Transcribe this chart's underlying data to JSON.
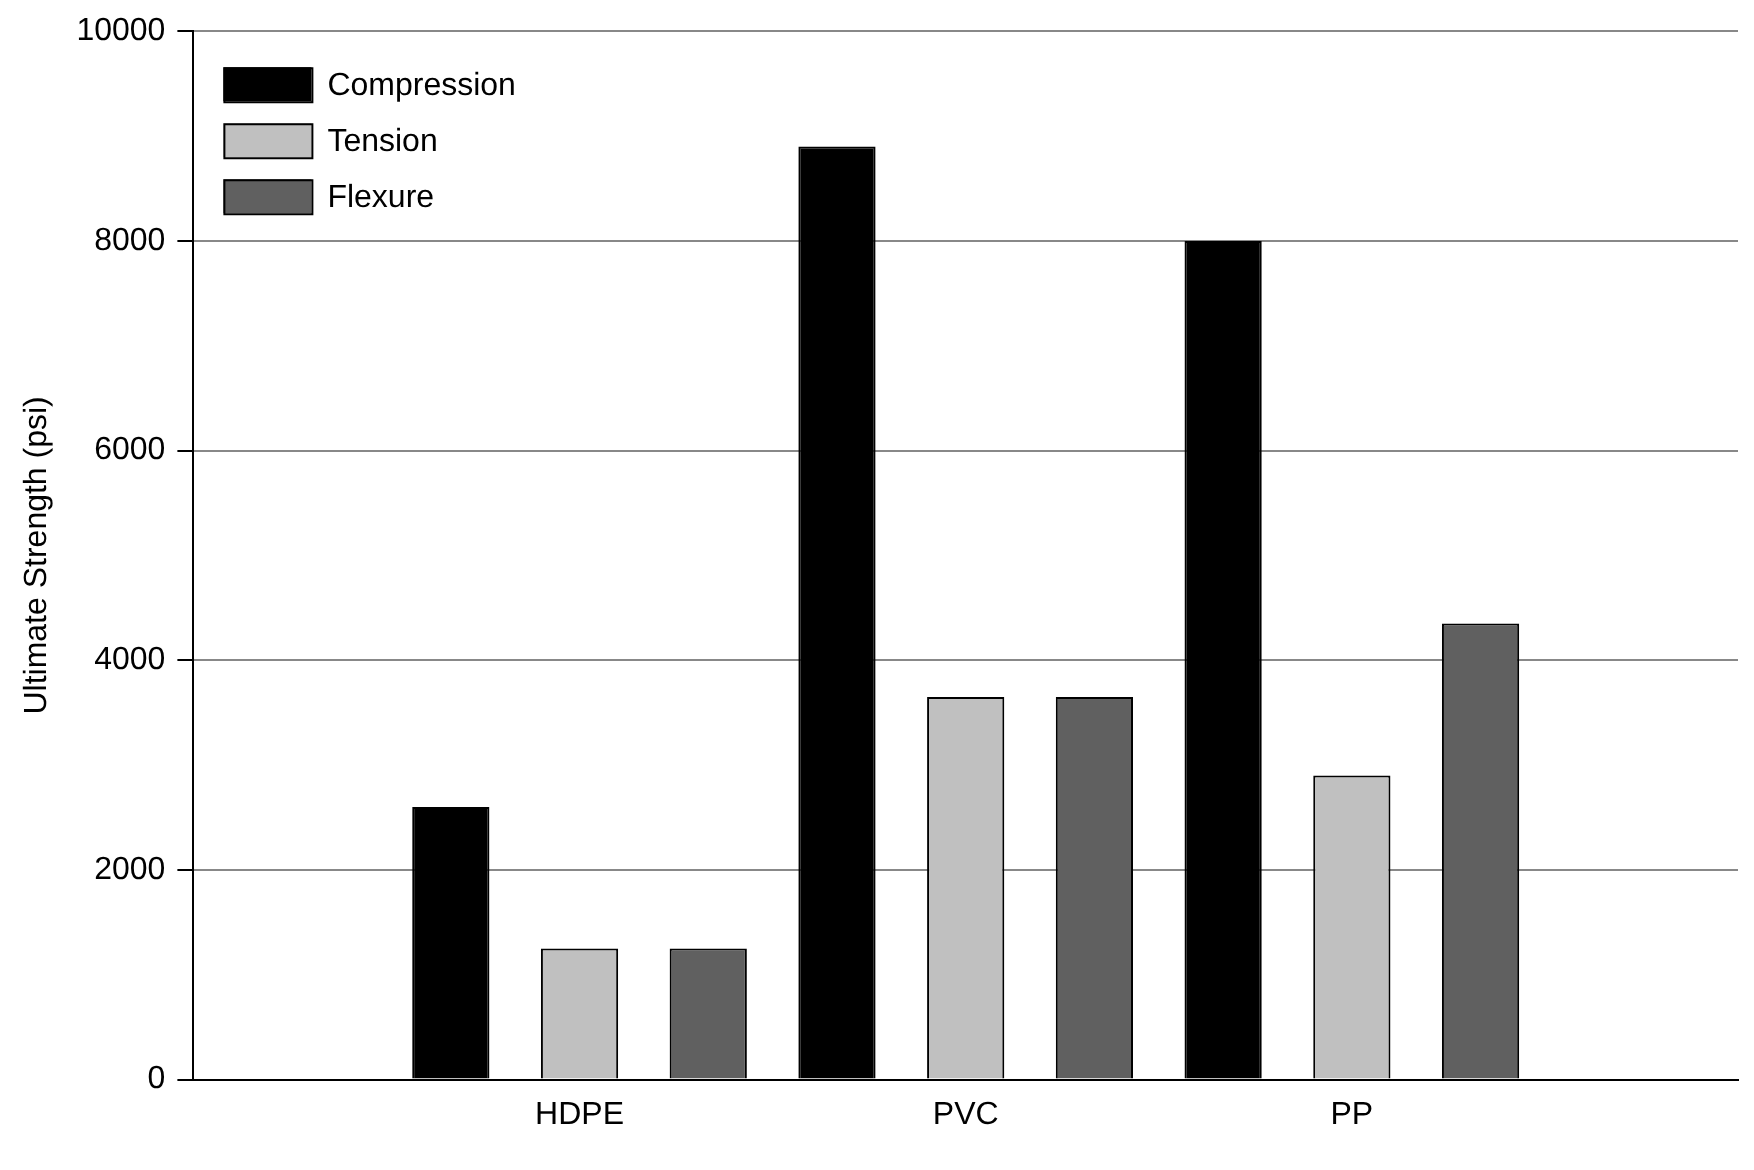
{
  "chart_data": {
    "type": "bar",
    "ylabel": "Ultimate Strength (psi)",
    "categories": [
      null,
      "HDPE",
      "PVC",
      "PP",
      null
    ],
    "series": [
      {
        "name": "Compression",
        "color": "#000000",
        "values": [
          null,
          2600,
          8900,
          8000,
          null
        ]
      },
      {
        "name": "Tension",
        "color": "#c0c0c0",
        "values": [
          null,
          1250,
          3650,
          2900,
          null
        ]
      },
      {
        "name": "Flexure",
        "color": "#606060",
        "values": [
          null,
          1250,
          3650,
          4350,
          null
        ]
      }
    ],
    "ylim": [
      0,
      10000
    ],
    "yticks": [
      0,
      2000,
      4000,
      6000,
      8000,
      10000
    ],
    "grid": "y",
    "legend": "top left"
  }
}
